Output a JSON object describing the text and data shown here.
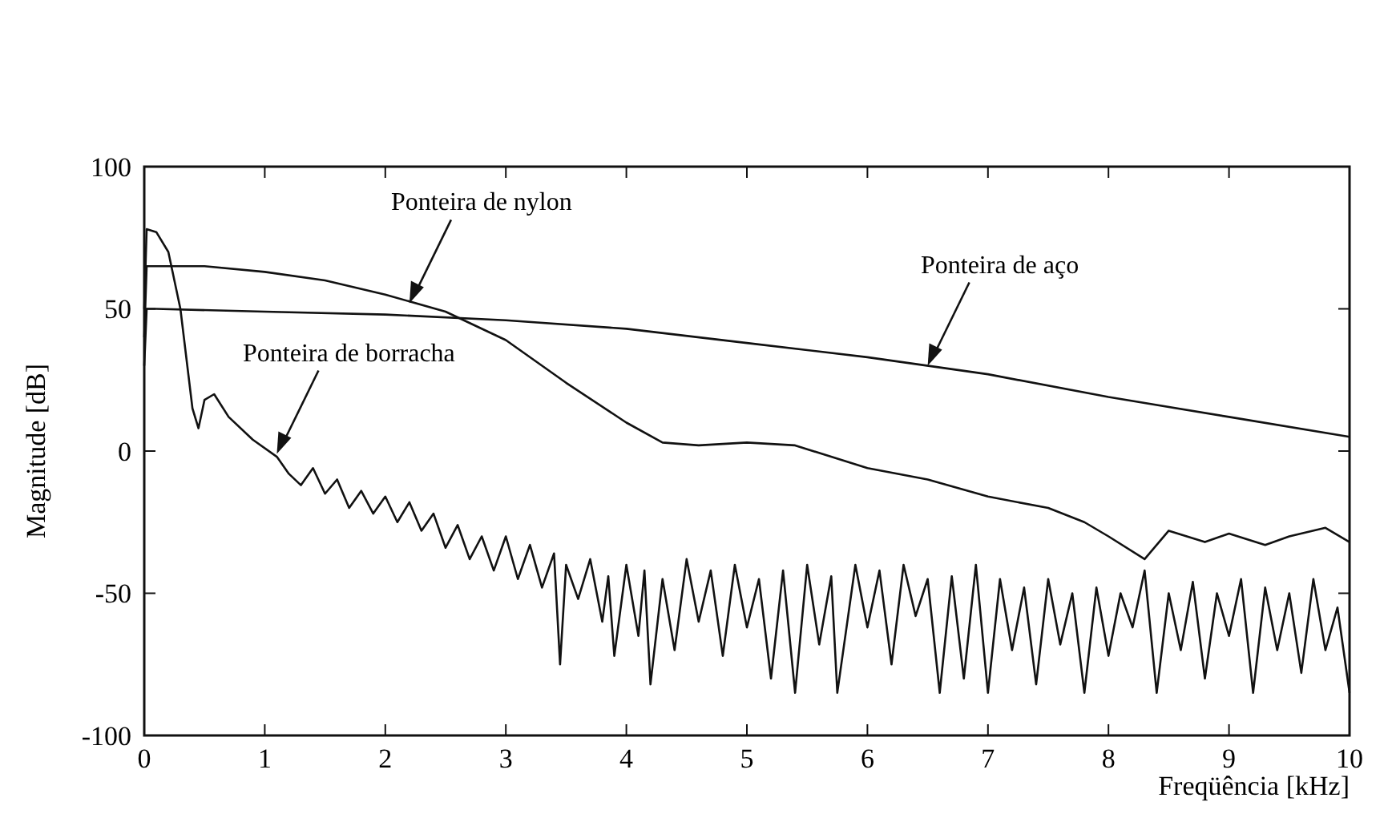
{
  "chart_data": {
    "type": "line",
    "xlabel": "Freqüência [kHz]",
    "ylabel": "Magnitude [dB]",
    "xlim": [
      0,
      10
    ],
    "ylim": [
      -100,
      100
    ],
    "xticks": [
      0,
      1,
      2,
      3,
      4,
      5,
      6,
      7,
      8,
      9,
      10
    ],
    "yticks": [
      -100,
      -50,
      0,
      50,
      100
    ],
    "grid": false,
    "marker": "none",
    "line_style": "solid",
    "series": [
      {
        "color": "#111111",
        "x": [
          0,
          0.02,
          0.1,
          1,
          2,
          3,
          4,
          5,
          6,
          7,
          8,
          9,
          10
        ],
        "values": [
          30,
          50,
          50,
          49,
          48,
          46,
          43,
          38,
          33,
          27,
          19,
          12,
          5
        ]
      },
      {
        "color": "#111111",
        "x": [
          0,
          0.02,
          0.5,
          1,
          1.5,
          2,
          2.5,
          3,
          3.5,
          4,
          4.3,
          4.6,
          5,
          5.4,
          6,
          6.5,
          7,
          7.5,
          7.8,
          8,
          8.3,
          8.5,
          8.8,
          9,
          9.3,
          9.5,
          9.8,
          10
        ],
        "values": [
          40,
          65,
          65,
          63,
          60,
          55,
          49,
          39,
          24,
          10,
          3,
          2,
          3,
          2,
          -6,
          -10,
          -16,
          -20,
          -25,
          -30,
          -38,
          -28,
          -32,
          -29,
          -33,
          -30,
          -27,
          -32
        ]
      },
      {
        "color": "#111111",
        "x": [
          0,
          0.02,
          0.1,
          0.2,
          0.3,
          0.4,
          0.45,
          0.5,
          0.58,
          0.7,
          0.9,
          1.1,
          1.2,
          1.3,
          1.4,
          1.5,
          1.6,
          1.7,
          1.8,
          1.9,
          2.0,
          2.1,
          2.2,
          2.3,
          2.4,
          2.5,
          2.6,
          2.7,
          2.8,
          2.9,
          3.0,
          3.1,
          3.2,
          3.3,
          3.4,
          3.45,
          3.5,
          3.6,
          3.7,
          3.8,
          3.85,
          3.9,
          4.0,
          4.1,
          4.15,
          4.2,
          4.3,
          4.4,
          4.5,
          4.6,
          4.7,
          4.8,
          4.9,
          5.0,
          5.1,
          5.2,
          5.3,
          5.4,
          5.5,
          5.6,
          5.7,
          5.75,
          5.9,
          6.0,
          6.1,
          6.2,
          6.3,
          6.4,
          6.5,
          6.6,
          6.7,
          6.8,
          6.9,
          7.0,
          7.1,
          7.2,
          7.3,
          7.4,
          7.5,
          7.6,
          7.7,
          7.8,
          7.9,
          8.0,
          8.1,
          8.2,
          8.3,
          8.4,
          8.5,
          8.6,
          8.7,
          8.8,
          8.9,
          9.0,
          9.1,
          9.2,
          9.3,
          9.4,
          9.5,
          9.6,
          9.7,
          9.8,
          9.9,
          10
        ],
        "values": [
          50,
          78,
          77,
          70,
          50,
          15,
          8,
          18,
          20,
          12,
          4,
          -2,
          -8,
          -12,
          -6,
          -15,
          -10,
          -20,
          -14,
          -22,
          -16,
          -25,
          -18,
          -28,
          -22,
          -34,
          -26,
          -38,
          -30,
          -42,
          -30,
          -45,
          -33,
          -48,
          -36,
          -75,
          -40,
          -52,
          -38,
          -60,
          -44,
          -72,
          -40,
          -65,
          -42,
          -82,
          -45,
          -70,
          -38,
          -60,
          -42,
          -72,
          -40,
          -62,
          -45,
          -80,
          -42,
          -85,
          -40,
          -68,
          -44,
          -85,
          -40,
          -62,
          -42,
          -75,
          -40,
          -58,
          -45,
          -85,
          -44,
          -80,
          -40,
          -85,
          -45,
          -70,
          -48,
          -82,
          -45,
          -68,
          -50,
          -85,
          -48,
          -72,
          -50,
          -62,
          -42,
          -85,
          -50,
          -70,
          -46,
          -80,
          -50,
          -65,
          -45,
          -85,
          -48,
          -70,
          -50,
          -78,
          -45,
          -70,
          -55,
          -85
        ]
      }
    ],
    "annotations": [
      {
        "text": "Ponteira de nylon",
        "x": 2.2,
        "y": 52
      },
      {
        "text": "Ponteira de aço",
        "x": 6.5,
        "y": 30
      },
      {
        "text": "Ponteira de borracha",
        "x": 1.1,
        "y": -1
      }
    ]
  }
}
